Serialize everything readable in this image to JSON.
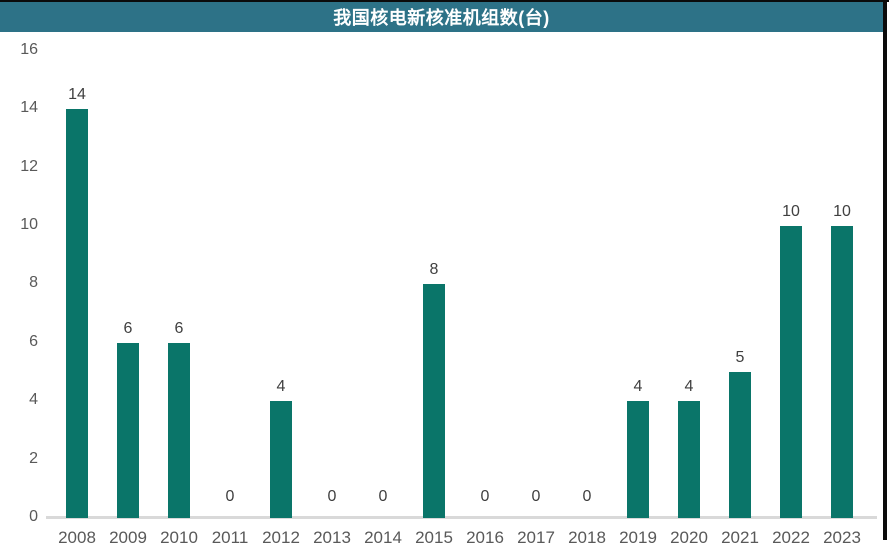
{
  "header": {
    "title": "我国核电新核准机组数(台)",
    "background": "#2D7287",
    "text_color": "#FFFFFF"
  },
  "frame": {
    "border_color": "#0B0B0B",
    "background": "#FFFFFF"
  },
  "chart_data": {
    "type": "bar",
    "title": "我国核电新核准机组数(台)",
    "categories": [
      "2008",
      "2009",
      "2010",
      "2011",
      "2012",
      "2013",
      "2014",
      "2015",
      "2016",
      "2017",
      "2018",
      "2019",
      "2020",
      "2021",
      "2022",
      "2023"
    ],
    "values": [
      14,
      6,
      6,
      0,
      4,
      0,
      0,
      8,
      0,
      0,
      0,
      4,
      4,
      5,
      10,
      10
    ],
    "xlabel": "",
    "ylabel": "",
    "ylim": [
      0,
      16
    ],
    "yticks": [
      0,
      2,
      4,
      6,
      8,
      10,
      12,
      14,
      16
    ],
    "grid": false,
    "legend": "none",
    "data_labels": true,
    "bar_color": "#0A7569",
    "data_label_color": "#404040",
    "axis_text_color": "#595959",
    "baseline_color": "#D9D9D9"
  }
}
